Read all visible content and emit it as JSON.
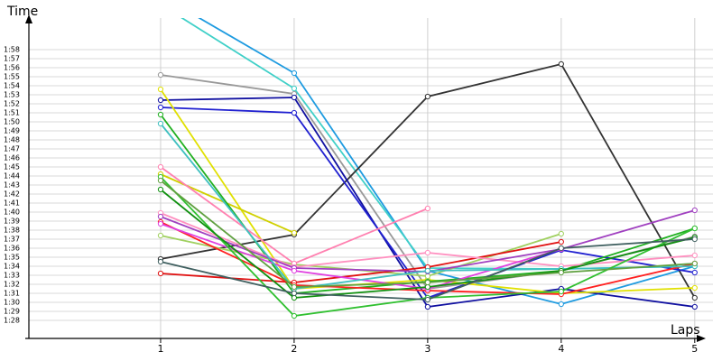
{
  "chart_data": {
    "type": "line",
    "y_label": "Time",
    "x_label": "Laps",
    "xlim": [
      0,
      5.15
    ],
    "xticks": [
      1,
      2,
      3,
      4,
      5
    ],
    "ylim": [
      86,
      121.5
    ],
    "yticks": [
      {
        "value": 88,
        "label": "1:28"
      },
      {
        "value": 89,
        "label": "1:29"
      },
      {
        "value": 90,
        "label": "1:30"
      },
      {
        "value": 91,
        "label": "1:31"
      },
      {
        "value": 92,
        "label": "1:32"
      },
      {
        "value": 93,
        "label": "1:33"
      },
      {
        "value": 94,
        "label": "1:34"
      },
      {
        "value": 95,
        "label": "1:35"
      },
      {
        "value": 96,
        "label": "1:36"
      },
      {
        "value": 97,
        "label": "1:37"
      },
      {
        "value": 98,
        "label": "1:38"
      },
      {
        "value": 99,
        "label": "1:39"
      },
      {
        "value": 100,
        "label": "1:40"
      },
      {
        "value": 101,
        "label": "1:41"
      },
      {
        "value": 102,
        "label": "1:42"
      },
      {
        "value": 103,
        "label": "1:43"
      },
      {
        "value": 104,
        "label": "1:44"
      },
      {
        "value": 105,
        "label": "1:45"
      },
      {
        "value": 106,
        "label": "1:46"
      },
      {
        "value": 107,
        "label": "1:47"
      },
      {
        "value": 108,
        "label": "1:48"
      },
      {
        "value": 109,
        "label": "1:49"
      },
      {
        "value": 110,
        "label": "1:50"
      },
      {
        "value": 111,
        "label": "1:51"
      },
      {
        "value": 112,
        "label": "1:52"
      },
      {
        "value": 113,
        "label": "1:53"
      },
      {
        "value": 114,
        "label": "1:54"
      },
      {
        "value": 115,
        "label": "1:55"
      },
      {
        "value": 116,
        "label": "1:56"
      },
      {
        "value": 117,
        "label": "1:57"
      },
      {
        "value": 118,
        "label": "1:58"
      }
    ],
    "x": [
      1,
      2,
      3,
      4,
      5
    ],
    "grid": true,
    "series": [
      {
        "color": "#1e9be0",
        "values": [
          124,
          115.4,
          93.5,
          89.8,
          94
        ]
      },
      {
        "color": "#40d0c8",
        "values": [
          123,
          113.7,
          93.8,
          93.7,
          94
        ]
      },
      {
        "color": "#999999",
        "values": [
          115.2,
          113.1,
          91.5,
          93.5,
          97.3
        ]
      },
      {
        "color": "#333333",
        "values": [
          94.8,
          97.5,
          112.8,
          116.4,
          90.5
        ]
      },
      {
        "color": "#1010a0",
        "values": [
          112.4,
          112.7,
          89.5,
          91.5,
          89.5
        ]
      },
      {
        "color": "#2020d0",
        "values": [
          111.6,
          111,
          90.5,
          95.8,
          93.3
        ]
      },
      {
        "color": "#e0e000",
        "values": [
          113.6,
          91.5,
          92.5,
          91,
          91.6
        ]
      },
      {
        "color": "#d0d000",
        "values": [
          104.2,
          97.7,
          null,
          null,
          null
        ]
      },
      {
        "color": "#20b020",
        "values": [
          110.8,
          91,
          92.3,
          93.5,
          98.2
        ]
      },
      {
        "color": "#a0d060",
        "values": [
          97.4,
          94.2,
          92.9,
          97.6,
          null
        ]
      },
      {
        "color": "#e01010",
        "values": [
          93.2,
          92.2,
          93.9,
          96.7,
          null
        ]
      },
      {
        "color": "#ff2020",
        "values": [
          98.9,
          91.9,
          91.3,
          90.9,
          94.3
        ]
      },
      {
        "color": "#ff80b0",
        "values": [
          105,
          94.3,
          100.4,
          null,
          null
        ]
      },
      {
        "color": "#ff90c0",
        "values": [
          99.9,
          93.9,
          95.5,
          94,
          95.2
        ]
      },
      {
        "color": "#a040c0",
        "values": [
          99.5,
          93.8,
          93.4,
          95.9,
          100.2
        ]
      },
      {
        "color": "#e040e0",
        "values": [
          98.7,
          93.5,
          91.5,
          95.9,
          null
        ]
      },
      {
        "color": "#40c0c0",
        "values": [
          109.8,
          91.5,
          93.5,
          93.7,
          94
        ]
      },
      {
        "color": "#30c030",
        "values": [
          103.9,
          88.5,
          90.5,
          91.2,
          98.2
        ]
      },
      {
        "color": "#109010",
        "values": [
          102.5,
          90.5,
          91.7,
          93.5,
          97.2
        ]
      },
      {
        "color": "#406060",
        "values": [
          94.5,
          91,
          90.3,
          96,
          97
        ]
      },
      {
        "color": "#60a040",
        "values": [
          103.5,
          91.7,
          92.2,
          93.3,
          94.3
        ]
      }
    ]
  }
}
